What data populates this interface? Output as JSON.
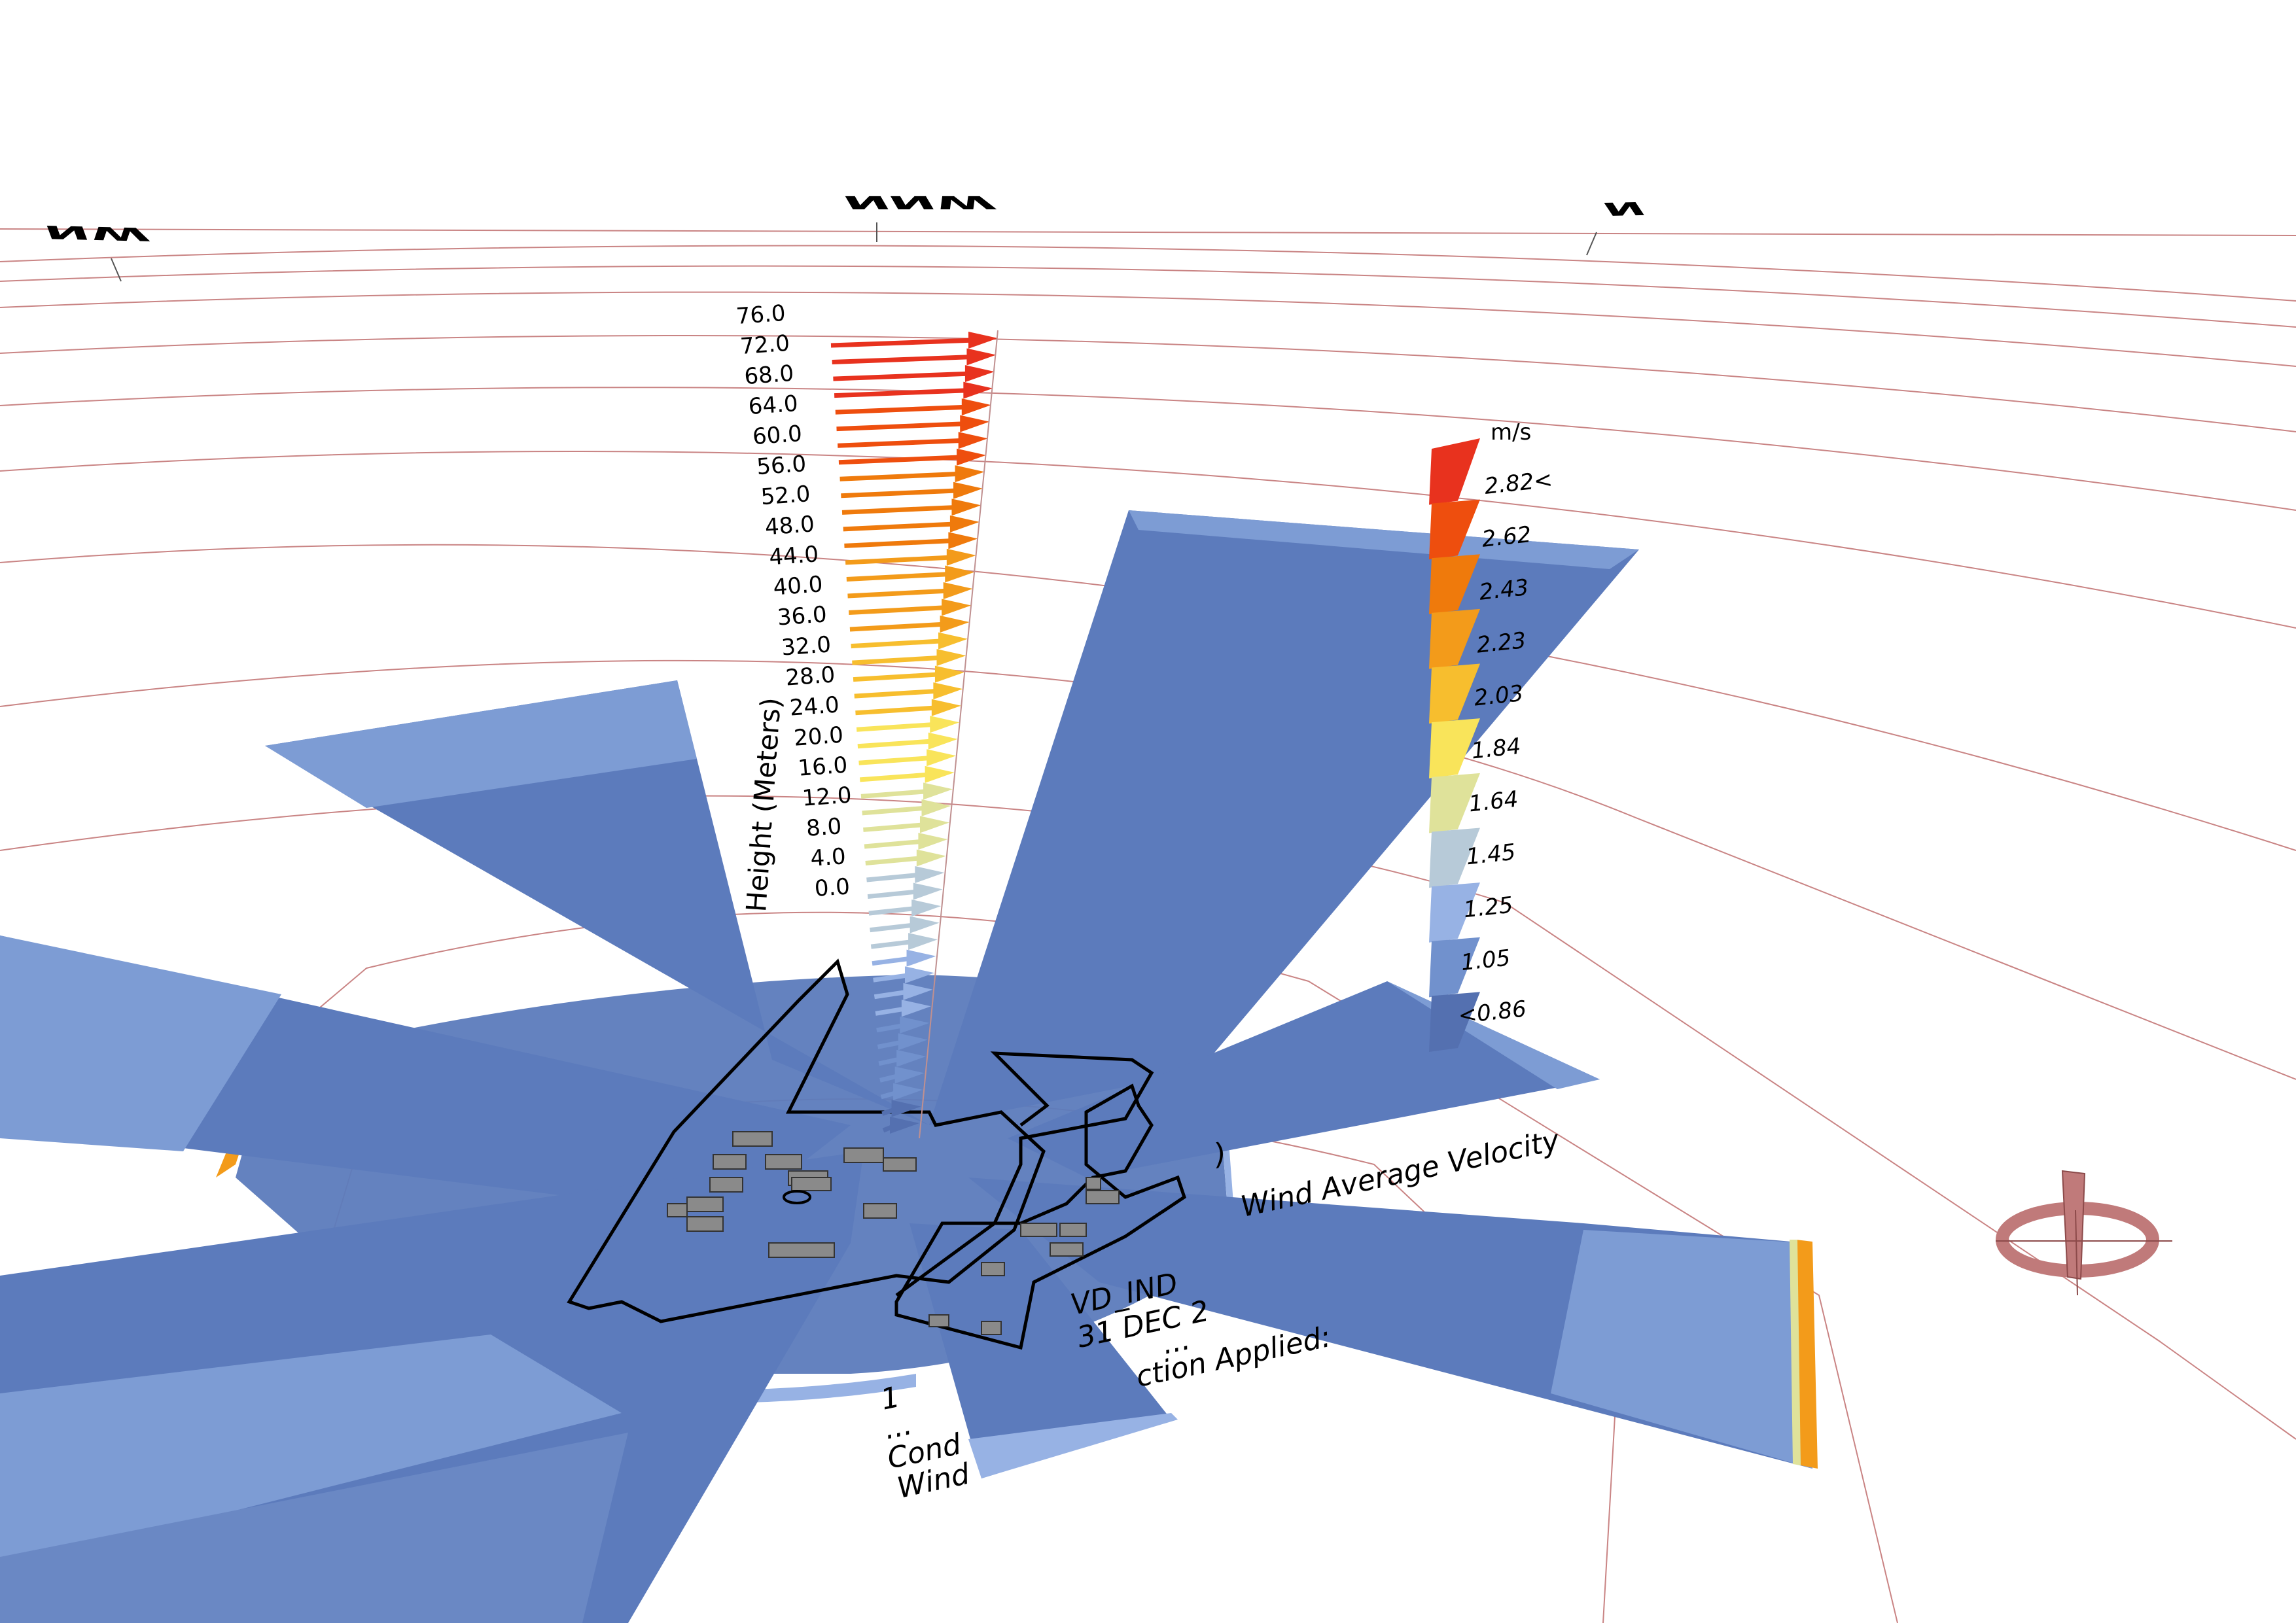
{
  "compass": {
    "nw": "NW",
    "nnw": "NNW",
    "n": "N"
  },
  "profile": {
    "axis_title": "Height (Meters)",
    "heights": [
      "76.0",
      "72.0",
      "68.0",
      "64.0",
      "60.0",
      "56.0",
      "52.0",
      "48.0",
      "44.0",
      "40.0",
      "36.0",
      "32.0",
      "28.0",
      "24.0",
      "20.0",
      "16.0",
      "12.0",
      "8.0",
      "4.0",
      "0.0"
    ]
  },
  "legend": {
    "unit": "m/s",
    "labels": [
      "2.82<",
      "2.62",
      "2.43",
      "2.23",
      "2.03",
      "1.84",
      "1.64",
      "1.45",
      "1.25",
      "1.05",
      "<0.86"
    ],
    "colors": [
      "#e8321e",
      "#ee4e0e",
      "#ef7a0c",
      "#f39b1a",
      "#f7be2e",
      "#f9e45a",
      "#dfe29a",
      "#b7cad8",
      "#97b2e4",
      "#7191cd",
      "#5470b0"
    ]
  },
  "info": {
    "title_fragment": "Wind Average Velocity",
    "paren": ")",
    "line1": "VD_IND",
    "line2": "31 DEC 2",
    "dots1": "...",
    "line3": "ction Applied:",
    "one": "1",
    "dots2": "...",
    "line4": "Cond",
    "line5": "Wind"
  },
  "colors": {
    "petal": "#5c7bbc",
    "petal_light": "#7d9cd4",
    "ring": "#b85b5b"
  }
}
